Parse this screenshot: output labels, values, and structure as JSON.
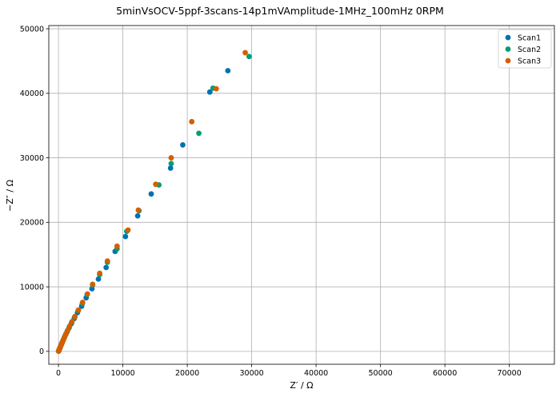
{
  "chart_data": {
    "type": "scatter",
    "title": "5minVsOCV-5ppf-3scans-14p1mVAmplitude-1MHz_100mHz 0RPM",
    "xlabel": "Z′ / Ω",
    "ylabel": "−Z″ / Ω",
    "xlim": [
      -1500,
      77000
    ],
    "ylim": [
      -2000,
      50500
    ],
    "xticks": [
      0,
      10000,
      20000,
      30000,
      40000,
      50000,
      60000,
      70000
    ],
    "yticks": [
      0,
      10000,
      20000,
      30000,
      40000,
      50000
    ],
    "grid": true,
    "legend_position": "top-right",
    "series": [
      {
        "name": "Scan1",
        "color": "#0072b2",
        "points": [
          [
            26300,
            43500
          ],
          [
            23500,
            40200
          ],
          [
            19300,
            32000
          ],
          [
            17400,
            28400
          ],
          [
            14400,
            24400
          ],
          [
            12300,
            21000
          ],
          [
            10400,
            17800
          ],
          [
            8800,
            15500
          ],
          [
            7400,
            13000
          ],
          [
            6200,
            11200
          ],
          [
            5200,
            9700
          ],
          [
            4300,
            8300
          ],
          [
            3600,
            7000
          ],
          [
            2950,
            6000
          ],
          [
            2450,
            5100
          ],
          [
            2000,
            4300
          ],
          [
            1650,
            3650
          ],
          [
            1350,
            3050
          ],
          [
            1100,
            2550
          ],
          [
            900,
            2100
          ],
          [
            720,
            1700
          ],
          [
            570,
            1350
          ],
          [
            440,
            1050
          ],
          [
            330,
            780
          ],
          [
            240,
            560
          ],
          [
            160,
            370
          ],
          [
            100,
            220
          ],
          [
            50,
            100
          ],
          [
            20,
            30
          ]
        ]
      },
      {
        "name": "Scan2",
        "color": "#009e73",
        "points": [
          [
            29600,
            45700
          ],
          [
            24000,
            40800
          ],
          [
            21800,
            33800
          ],
          [
            17500,
            29100
          ],
          [
            15600,
            25800
          ],
          [
            12500,
            21800
          ],
          [
            10600,
            18600
          ],
          [
            9100,
            15900
          ],
          [
            7600,
            13800
          ],
          [
            6400,
            11900
          ],
          [
            5300,
            10300
          ],
          [
            4450,
            8800
          ],
          [
            3700,
            7400
          ],
          [
            3050,
            6300
          ],
          [
            2520,
            5300
          ],
          [
            2070,
            4500
          ],
          [
            1700,
            3800
          ],
          [
            1400,
            3200
          ],
          [
            1140,
            2650
          ],
          [
            930,
            2200
          ],
          [
            750,
            1780
          ],
          [
            590,
            1400
          ],
          [
            455,
            1090
          ],
          [
            345,
            810
          ],
          [
            250,
            580
          ],
          [
            170,
            390
          ],
          [
            105,
            230
          ],
          [
            55,
            110
          ],
          [
            22,
            35
          ]
        ]
      },
      {
        "name": "Scan3",
        "color": "#d55e00",
        "points": [
          [
            29000,
            46300
          ],
          [
            24500,
            40700
          ],
          [
            20700,
            35600
          ],
          [
            17500,
            30000
          ],
          [
            15100,
            25900
          ],
          [
            12400,
            21900
          ],
          [
            10800,
            18800
          ],
          [
            9100,
            16300
          ],
          [
            7600,
            14000
          ],
          [
            6400,
            12100
          ],
          [
            5300,
            10400
          ],
          [
            4500,
            8900
          ],
          [
            3750,
            7600
          ],
          [
            3100,
            6400
          ],
          [
            2550,
            5400
          ],
          [
            2100,
            4600
          ],
          [
            1730,
            3900
          ],
          [
            1420,
            3250
          ],
          [
            1160,
            2700
          ],
          [
            940,
            2230
          ],
          [
            760,
            1800
          ],
          [
            600,
            1420
          ],
          [
            460,
            1100
          ],
          [
            350,
            820
          ],
          [
            255,
            590
          ],
          [
            175,
            400
          ],
          [
            110,
            240
          ],
          [
            58,
            115
          ],
          [
            24,
            40
          ]
        ]
      }
    ]
  }
}
